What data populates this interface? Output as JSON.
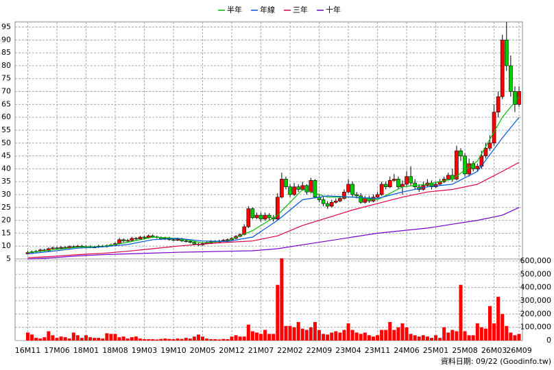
{
  "chart_data": {
    "type": "candlestick",
    "legend": [
      "半年",
      "年線",
      "三年",
      "十年"
    ],
    "footer": "資料日期: 09/22 (Goodinfo.tw)",
    "categories": [
      "16M11",
      null,
      null,
      null,
      null,
      null,
      null,
      "17M06",
      null,
      null,
      null,
      null,
      null,
      null,
      "18M01",
      null,
      null,
      null,
      null,
      null,
      null,
      "18M08",
      null,
      null,
      null,
      null,
      null,
      null,
      "19M03",
      null,
      null,
      null,
      null,
      null,
      null,
      "19M10",
      null,
      null,
      null,
      null,
      null,
      null,
      "20M05",
      null,
      null,
      null,
      null,
      null,
      null,
      "20M12",
      null,
      null,
      null,
      null,
      null,
      null,
      "21M07",
      null,
      null,
      null,
      null,
      null,
      null,
      "22M02",
      null,
      null,
      null,
      null,
      null,
      null,
      "22M09",
      null,
      null,
      null,
      null,
      null,
      null,
      "23M04",
      null,
      null,
      null,
      null,
      null,
      null,
      "23M11",
      null,
      null,
      null,
      null,
      null,
      null,
      "24M06",
      null,
      null,
      null,
      null,
      null,
      null,
      "25M01",
      null,
      null,
      null,
      null,
      null,
      null,
      "25M08",
      null,
      null,
      null,
      null,
      null,
      null,
      "26M03",
      null,
      null,
      null,
      null,
      null,
      "26M09"
    ],
    "up_color": "#ff0000",
    "down_color": "#00cc00",
    "open": [
      7,
      7.5,
      7.8,
      8,
      8.5,
      8.2,
      9,
      9.3,
      9.2,
      9.5,
      9.3,
      9.8,
      9.6,
      10,
      9.7,
      9.8,
      9.5,
      9.6,
      10,
      9.8,
      10.2,
      10.5,
      11,
      12.5,
      12,
      12.2,
      13,
      12.8,
      13.5,
      13.2,
      14,
      13.6,
      13.3,
      12.8,
      13.1,
      12.5,
      12.3,
      12.7,
      12,
      11.8,
      11.5,
      10.8,
      10.5,
      11,
      11.3,
      11.8,
      11.6,
      12,
      12.3,
      12.5,
      13,
      13.8,
      14.5,
      17.5,
      24.5,
      21,
      22,
      20.5,
      22,
      21,
      20.5,
      29,
      36,
      33,
      30,
      33,
      32,
      33.5,
      31,
      35.5,
      29,
      28,
      26.5,
      25.5,
      27,
      27.5,
      28.5,
      31,
      34,
      30,
      29.5,
      27,
      28.5,
      27.5,
      29,
      30,
      34,
      33,
      35.5,
      36,
      33,
      34,
      37,
      34.5,
      33,
      32,
      33.5,
      34.5,
      33,
      34,
      35,
      36,
      37.5,
      36,
      47,
      45,
      38,
      42,
      40,
      41,
      45,
      48,
      50,
      62,
      68,
      90,
      80,
      70,
      65
    ],
    "high": [
      8.2,
      8.3,
      8.5,
      9,
      9,
      9.5,
      9.8,
      9.8,
      10,
      10,
      10.3,
      10.3,
      10.5,
      10.5,
      10.3,
      10.3,
      10.1,
      10.5,
      10.5,
      10.7,
      11,
      11.5,
      13.2,
      13,
      12.8,
      13.6,
      13.5,
      14,
      14,
      14.5,
      14.5,
      14.1,
      13.8,
      13.6,
      13.6,
      13,
      13.2,
      13.2,
      12.5,
      12.3,
      12,
      11.3,
      11.5,
      11.8,
      12.3,
      12.3,
      12.5,
      12.8,
      13,
      13.5,
      14.3,
      15,
      18.5,
      25.5,
      25,
      23,
      23,
      23,
      22.8,
      22,
      30.5,
      38.5,
      37,
      34,
      34.5,
      34,
      35,
      34,
      36.5,
      36,
      30,
      29,
      27.5,
      28,
      28.5,
      29.5,
      32,
      36,
      35,
      31,
      30.5,
      29.5,
      29.5,
      30,
      31,
      35,
      35,
      37,
      38,
      37,
      35.5,
      39,
      41,
      36,
      34,
      35,
      36,
      35.5,
      35,
      36,
      37,
      38.5,
      40,
      49,
      48,
      46,
      44,
      43,
      42,
      47,
      50,
      53,
      65,
      70,
      92,
      97,
      84,
      72,
      72
    ],
    "low": [
      6.8,
      7.2,
      7.5,
      7.7,
      7.9,
      8,
      8.7,
      8.9,
      9,
      9,
      9,
      9.3,
      9.3,
      9.4,
      9.4,
      9.2,
      9.2,
      9.3,
      9.5,
      9.5,
      9.9,
      10.2,
      10.7,
      11.5,
      11.7,
      11.9,
      12.4,
      12.4,
      12.8,
      12.9,
      13.2,
      12.9,
      12.4,
      12.4,
      12.1,
      11.9,
      11.9,
      11.6,
      11.4,
      11.1,
      10.4,
      10,
      10.2,
      10.7,
      11,
      11.3,
      11.3,
      11.7,
      12,
      12.2,
      12.7,
      13.5,
      14.2,
      17,
      20.5,
      20.5,
      19.5,
      19.8,
      20.2,
      19.5,
      20,
      28.5,
      32,
      29,
      29.5,
      31,
      31.5,
      30,
      30.5,
      28.5,
      27,
      25.5,
      24.5,
      25,
      26.5,
      27,
      28,
      30.5,
      29,
      28.5,
      26.5,
      26.5,
      26.8,
      27,
      28.5,
      29.5,
      32,
      32.5,
      35,
      32,
      30,
      33,
      33.5,
      32,
      31,
      31.5,
      33,
      32,
      32.5,
      33.5,
      34.5,
      35.5,
      35,
      35.5,
      43,
      37,
      37,
      39,
      39,
      40,
      44,
      47,
      49,
      60,
      67,
      78,
      68,
      62,
      64
    ],
    "close": [
      7.5,
      7.8,
      8,
      8.5,
      8.2,
      9,
      9.3,
      9.2,
      9.5,
      9.3,
      9.8,
      9.6,
      10,
      9.7,
      9.8,
      9.5,
      9.6,
      10,
      9.8,
      10.2,
      10.5,
      11,
      12.5,
      12,
      12.2,
      13,
      12.8,
      13.5,
      13.2,
      14,
      13.6,
      13.3,
      12.8,
      13.1,
      12.5,
      12.3,
      12.7,
      12,
      11.8,
      11.5,
      10.8,
      10.5,
      11,
      11.3,
      11.8,
      11.6,
      12,
      12.3,
      12.5,
      13,
      13.8,
      14.5,
      17.5,
      24.5,
      21,
      22,
      20.5,
      22,
      21,
      20.5,
      29,
      36,
      33,
      30,
      33,
      32,
      33.5,
      31,
      35.5,
      29,
      28,
      26.5,
      25.5,
      27,
      27.5,
      28.5,
      31,
      34,
      30,
      29.5,
      27,
      28.5,
      27.5,
      29,
      30,
      34,
      33,
      35.5,
      36,
      33,
      34,
      37,
      34.5,
      33,
      32,
      33.5,
      34.5,
      33,
      34,
      35,
      36,
      37.5,
      36,
      47,
      45,
      38,
      42,
      40,
      41,
      45,
      48,
      50,
      62,
      68,
      90,
      80,
      70,
      65,
      70
    ],
    "volume": [
      60000,
      45000,
      20000,
      15000,
      25000,
      70000,
      40000,
      20000,
      30000,
      25000,
      15000,
      60000,
      40000,
      20000,
      40000,
      25000,
      20000,
      20000,
      15000,
      55000,
      50000,
      50000,
      25000,
      30000,
      15000,
      25000,
      30000,
      15000,
      10000,
      10000,
      10000,
      8000,
      12000,
      15000,
      12000,
      10000,
      15000,
      12000,
      20000,
      15000,
      30000,
      45000,
      30000,
      15000,
      10000,
      10000,
      8000,
      12000,
      10000,
      30000,
      40000,
      30000,
      30000,
      120000,
      70000,
      60000,
      50000,
      80000,
      50000,
      50000,
      420000,
      620000,
      110000,
      110000,
      100000,
      140000,
      90000,
      80000,
      100000,
      140000,
      80000,
      50000,
      45000,
      60000,
      70000,
      60000,
      80000,
      130000,
      80000,
      60000,
      50000,
      60000,
      40000,
      30000,
      40000,
      80000,
      80000,
      140000,
      80000,
      100000,
      130000,
      100000,
      50000,
      40000,
      30000,
      40000,
      30000,
      20000,
      40000,
      20000,
      100000,
      60000,
      80000,
      70000,
      420000,
      70000,
      40000,
      40000,
      130000,
      100000,
      90000,
      260000,
      130000,
      330000,
      200000,
      110000,
      60000,
      40000,
      50000
    ],
    "volume_color": "#ff0000",
    "series": [
      {
        "name": "半年",
        "color": "#00bb00",
        "x": [
          0,
          6,
          12,
          18,
          24,
          30,
          36,
          42,
          48,
          54,
          60,
          66,
          72,
          78,
          84,
          90,
          96,
          102,
          108,
          114,
          118
        ],
        "values": [
          7.5,
          8.5,
          9.6,
          9.8,
          11.5,
          13.5,
          13,
          11.3,
          12,
          16,
          22,
          32,
          29,
          29,
          28,
          33,
          34,
          36,
          43,
          60,
          68
        ]
      },
      {
        "name": "年線",
        "color": "#0055dd",
        "x": [
          0,
          6,
          12,
          18,
          24,
          30,
          36,
          42,
          48,
          54,
          60,
          66,
          72,
          78,
          84,
          90,
          96,
          102,
          108,
          114,
          118
        ],
        "values": [
          7,
          8,
          9.2,
          9.7,
          10.6,
          12.5,
          13,
          12,
          11.8,
          13.5,
          20,
          28,
          29.5,
          29,
          28.5,
          31,
          33,
          34,
          39,
          52,
          60
        ]
      },
      {
        "name": "三年",
        "color": "#dd0044",
        "x": [
          0,
          6,
          12,
          18,
          24,
          30,
          36,
          42,
          48,
          54,
          60,
          66,
          72,
          78,
          84,
          90,
          96,
          102,
          108,
          114,
          118
        ],
        "values": [
          5.5,
          6,
          6.7,
          7.2,
          8,
          9,
          10,
          10.8,
          11.5,
          12,
          14,
          18,
          21,
          24,
          26.5,
          29,
          31,
          32,
          34,
          39,
          42.5
        ]
      },
      {
        "name": "十年",
        "color": "#7700cc",
        "x": [
          0,
          6,
          12,
          18,
          24,
          30,
          36,
          42,
          48,
          54,
          60,
          66,
          72,
          78,
          84,
          90,
          96,
          102,
          108,
          114,
          118
        ],
        "values": [
          5,
          5.5,
          6.2,
          6.7,
          7,
          7.3,
          7.6,
          7.8,
          8,
          8.2,
          9,
          10.5,
          12,
          13.5,
          15,
          16,
          17,
          18.5,
          20,
          22,
          25
        ]
      }
    ],
    "ylim": [
      5,
      97
    ],
    "yticks": [
      5,
      10,
      15,
      20,
      25,
      30,
      35,
      40,
      45,
      50,
      55,
      60,
      65,
      70,
      75,
      80,
      85,
      90,
      95
    ],
    "y2lim": [
      0,
      615000
    ],
    "y2ticks": [
      0,
      {
        "value": 100000,
        "label": "100,000"
      },
      {
        "value": 200000,
        "label": "200,000"
      },
      {
        "value": 300000,
        "label": "300,000"
      },
      {
        "value": 400000,
        "label": "400,000"
      },
      {
        "value": 500000,
        "label": "500,000"
      },
      {
        "value": 600000,
        "label": "600,000"
      }
    ],
    "grid": true
  }
}
